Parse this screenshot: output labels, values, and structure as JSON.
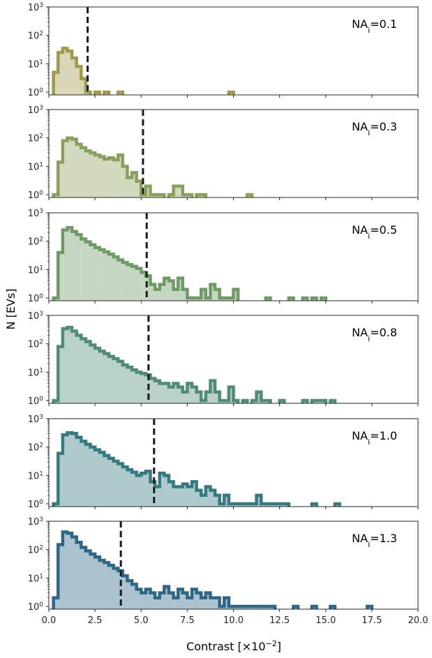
{
  "chart_data": {
    "type": "histogram",
    "xlabel_main": "Contrast [×10",
    "xlabel_exp": "−2",
    "xlabel_end": "]",
    "ylabel": "N [EVs]",
    "xlim": [
      0,
      20
    ],
    "ylim": [
      0.8,
      1000
    ],
    "yscale": "log",
    "x_ticks": [
      "0.0",
      "2.5",
      "5.0",
      "7.5",
      "10.0",
      "12.5",
      "15.0",
      "17.5",
      "20.0"
    ],
    "y_ticks": [
      {
        "base": "10",
        "exp": "0"
      },
      {
        "base": "10",
        "exp": "1"
      },
      {
        "base": "10",
        "exp": "2"
      },
      {
        "base": "10",
        "exp": "3"
      }
    ],
    "bin_width": 0.25,
    "panels": [
      {
        "label_main": "NA",
        "label_sub": "i",
        "label_value": "=0.1",
        "threshold": 2.1,
        "color": "#a09a4a",
        "bins": [
          [
            0.25,
            5
          ],
          [
            0.5,
            25
          ],
          [
            0.75,
            35
          ],
          [
            1.0,
            28
          ],
          [
            1.25,
            16
          ],
          [
            1.5,
            8
          ],
          [
            1.75,
            3
          ],
          [
            2.0,
            1
          ],
          [
            2.5,
            1
          ],
          [
            3.0,
            1
          ],
          [
            3.75,
            1
          ],
          [
            9.75,
            1
          ]
        ]
      },
      {
        "label_main": "NA",
        "label_sub": "i",
        "label_value": "=0.3",
        "threshold": 5.1,
        "color": "#8aa05a",
        "bins": [
          [
            0.25,
            1
          ],
          [
            0.5,
            14
          ],
          [
            0.75,
            80
          ],
          [
            1.0,
            100
          ],
          [
            1.25,
            90
          ],
          [
            1.5,
            60
          ],
          [
            1.75,
            45
          ],
          [
            2.0,
            35
          ],
          [
            2.25,
            30
          ],
          [
            2.5,
            25
          ],
          [
            2.75,
            22
          ],
          [
            3.0,
            18
          ],
          [
            3.25,
            20
          ],
          [
            3.5,
            17
          ],
          [
            3.75,
            25
          ],
          [
            4.0,
            10
          ],
          [
            4.25,
            4
          ],
          [
            4.5,
            6
          ],
          [
            4.75,
            3
          ],
          [
            5.0,
            1
          ],
          [
            5.25,
            2
          ],
          [
            5.5,
            1
          ],
          [
            5.75,
            1
          ],
          [
            6.0,
            1
          ],
          [
            6.5,
            1
          ],
          [
            6.75,
            2
          ],
          [
            7.0,
            2
          ],
          [
            7.25,
            1
          ],
          [
            7.5,
            1
          ],
          [
            8.0,
            1
          ],
          [
            8.25,
            1
          ],
          [
            10.75,
            1
          ]
        ]
      },
      {
        "label_main": "NA",
        "label_sub": "i",
        "label_value": "=0.5",
        "threshold": 5.3,
        "color": "#6f9a66",
        "bins": [
          [
            0.25,
            1
          ],
          [
            0.5,
            40
          ],
          [
            0.75,
            250
          ],
          [
            1.0,
            300
          ],
          [
            1.25,
            220
          ],
          [
            1.5,
            170
          ],
          [
            1.75,
            120
          ],
          [
            2.0,
            95
          ],
          [
            2.25,
            75
          ],
          [
            2.5,
            60
          ],
          [
            2.75,
            50
          ],
          [
            3.0,
            42
          ],
          [
            3.25,
            35
          ],
          [
            3.5,
            28
          ],
          [
            3.75,
            22
          ],
          [
            4.0,
            18
          ],
          [
            4.25,
            15
          ],
          [
            4.5,
            13
          ],
          [
            4.75,
            11
          ],
          [
            5.0,
            8
          ],
          [
            5.25,
            6
          ],
          [
            5.5,
            3
          ],
          [
            5.75,
            2
          ],
          [
            6.0,
            3
          ],
          [
            6.25,
            5
          ],
          [
            6.5,
            4
          ],
          [
            6.75,
            2
          ],
          [
            7.0,
            5
          ],
          [
            7.25,
            2
          ],
          [
            7.5,
            1
          ],
          [
            7.75,
            1
          ],
          [
            8.0,
            1
          ],
          [
            8.25,
            2
          ],
          [
            8.5,
            1
          ],
          [
            8.75,
            3
          ],
          [
            9.0,
            2
          ],
          [
            9.25,
            1
          ],
          [
            9.5,
            1
          ],
          [
            9.75,
            1
          ],
          [
            10.0,
            2
          ],
          [
            11.75,
            1
          ],
          [
            13.0,
            1
          ],
          [
            13.75,
            1
          ],
          [
            14.25,
            1
          ],
          [
            14.75,
            1
          ]
        ]
      },
      {
        "label_main": "NA",
        "label_sub": "i",
        "label_value": "=0.8",
        "threshold": 5.4,
        "color": "#4f8c74",
        "bins": [
          [
            0.25,
            1
          ],
          [
            0.5,
            80
          ],
          [
            0.75,
            340
          ],
          [
            1.0,
            380
          ],
          [
            1.25,
            280
          ],
          [
            1.5,
            200
          ],
          [
            1.75,
            150
          ],
          [
            2.0,
            120
          ],
          [
            2.25,
            90
          ],
          [
            2.5,
            70
          ],
          [
            2.75,
            55
          ],
          [
            3.0,
            45
          ],
          [
            3.25,
            36
          ],
          [
            3.5,
            30
          ],
          [
            3.75,
            24
          ],
          [
            4.0,
            18
          ],
          [
            4.25,
            15
          ],
          [
            4.5,
            12
          ],
          [
            4.75,
            10
          ],
          [
            5.0,
            9
          ],
          [
            5.25,
            8
          ],
          [
            5.5,
            6
          ],
          [
            5.75,
            5
          ],
          [
            6.0,
            4
          ],
          [
            6.25,
            4
          ],
          [
            6.5,
            3
          ],
          [
            6.75,
            4
          ],
          [
            7.0,
            3
          ],
          [
            7.25,
            2
          ],
          [
            7.5,
            4
          ],
          [
            7.75,
            3
          ],
          [
            8.0,
            2
          ],
          [
            8.25,
            1
          ],
          [
            8.5,
            2
          ],
          [
            8.75,
            5
          ],
          [
            9.0,
            2
          ],
          [
            9.25,
            1
          ],
          [
            9.5,
            1
          ],
          [
            9.75,
            3
          ],
          [
            10.0,
            1
          ],
          [
            10.5,
            1
          ],
          [
            11.0,
            1
          ],
          [
            11.25,
            2
          ],
          [
            11.5,
            1
          ],
          [
            11.75,
            1
          ],
          [
            12.5,
            1
          ],
          [
            13.75,
            1
          ],
          [
            14.25,
            1
          ],
          [
            14.5,
            1
          ],
          [
            14.75,
            1
          ],
          [
            15.25,
            1
          ]
        ]
      },
      {
        "label_main": "NA",
        "label_sub": "i",
        "label_value": "=1.0",
        "threshold": 5.7,
        "color": "#357a80",
        "bins": [
          [
            0.25,
            1
          ],
          [
            0.5,
            60
          ],
          [
            0.75,
            270
          ],
          [
            1.0,
            320
          ],
          [
            1.25,
            300
          ],
          [
            1.5,
            220
          ],
          [
            1.75,
            160
          ],
          [
            2.0,
            125
          ],
          [
            2.25,
            100
          ],
          [
            2.5,
            80
          ],
          [
            2.75,
            65
          ],
          [
            3.0,
            50
          ],
          [
            3.25,
            40
          ],
          [
            3.5,
            32
          ],
          [
            3.75,
            26
          ],
          [
            4.0,
            20
          ],
          [
            4.25,
            16
          ],
          [
            4.5,
            13
          ],
          [
            4.75,
            10
          ],
          [
            5.0,
            12
          ],
          [
            5.25,
            14
          ],
          [
            5.5,
            6
          ],
          [
            5.75,
            4
          ],
          [
            6.0,
            12
          ],
          [
            6.25,
            10
          ],
          [
            6.5,
            6
          ],
          [
            6.75,
            4
          ],
          [
            7.0,
            4
          ],
          [
            7.25,
            5
          ],
          [
            7.5,
            4
          ],
          [
            7.75,
            6
          ],
          [
            8.0,
            3
          ],
          [
            8.25,
            2
          ],
          [
            8.5,
            4
          ],
          [
            8.75,
            3
          ],
          [
            9.0,
            2
          ],
          [
            9.25,
            1
          ],
          [
            9.5,
            2
          ],
          [
            9.75,
            1
          ],
          [
            10.0,
            1
          ],
          [
            10.25,
            1
          ],
          [
            10.5,
            1
          ],
          [
            10.75,
            1
          ],
          [
            11.0,
            1
          ],
          [
            11.25,
            2
          ],
          [
            11.5,
            1
          ],
          [
            11.75,
            1
          ],
          [
            12.0,
            1
          ],
          [
            12.25,
            1
          ],
          [
            12.5,
            1
          ],
          [
            12.75,
            1
          ],
          [
            14.25,
            1
          ],
          [
            15.5,
            1
          ]
        ]
      },
      {
        "label_main": "NA",
        "label_sub": "i",
        "label_value": "=1.3",
        "threshold": 3.9,
        "color": "#2e6688",
        "bins": [
          [
            0.25,
            2
          ],
          [
            0.5,
            150
          ],
          [
            0.75,
            420
          ],
          [
            1.0,
            380
          ],
          [
            1.25,
            280
          ],
          [
            1.5,
            180
          ],
          [
            1.75,
            120
          ],
          [
            2.0,
            90
          ],
          [
            2.25,
            70
          ],
          [
            2.5,
            55
          ],
          [
            2.75,
            42
          ],
          [
            3.0,
            35
          ],
          [
            3.25,
            28
          ],
          [
            3.5,
            22
          ],
          [
            3.75,
            18
          ],
          [
            4.0,
            12
          ],
          [
            4.25,
            8
          ],
          [
            4.5,
            6
          ],
          [
            4.75,
            4
          ],
          [
            5.0,
            3
          ],
          [
            5.25,
            4
          ],
          [
            5.5,
            3
          ],
          [
            5.75,
            2
          ],
          [
            6.0,
            3
          ],
          [
            6.25,
            5
          ],
          [
            6.5,
            3
          ],
          [
            6.75,
            2
          ],
          [
            7.0,
            4
          ],
          [
            7.25,
            3
          ],
          [
            7.5,
            2
          ],
          [
            7.75,
            4
          ],
          [
            8.0,
            3
          ],
          [
            8.25,
            2
          ],
          [
            8.5,
            3
          ],
          [
            8.75,
            2
          ],
          [
            9.0,
            2
          ],
          [
            9.25,
            1
          ],
          [
            9.5,
            2
          ],
          [
            9.75,
            1
          ],
          [
            10.0,
            1
          ],
          [
            10.25,
            1
          ],
          [
            10.5,
            1
          ],
          [
            10.75,
            1
          ],
          [
            11.0,
            1
          ],
          [
            11.25,
            1
          ],
          [
            11.5,
            1
          ],
          [
            11.75,
            1
          ],
          [
            12.0,
            1
          ],
          [
            13.25,
            1
          ],
          [
            14.25,
            1
          ],
          [
            15.25,
            1
          ],
          [
            17.25,
            1
          ]
        ]
      }
    ]
  }
}
